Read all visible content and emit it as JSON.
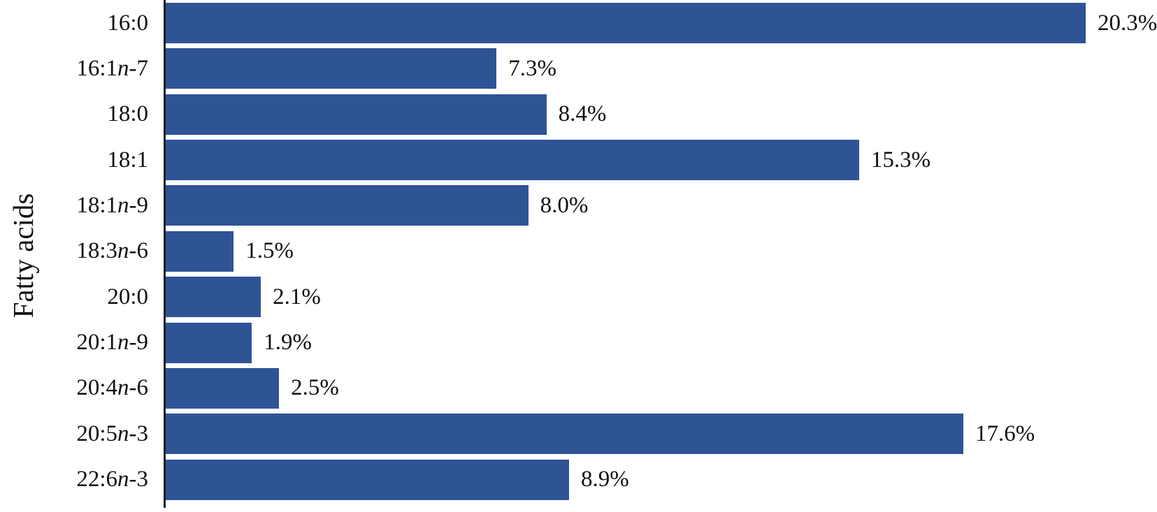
{
  "chart_data": {
    "type": "bar",
    "orientation": "horizontal",
    "title": "",
    "xlabel": "",
    "ylabel": "Fatty acids",
    "categories": [
      "16:0",
      "16:1n-7",
      "18:0",
      "18:1",
      "18:1n-9",
      "18:3n-6",
      "20:0",
      "20:1n-9",
      "20:4n-6",
      "20:5n-3",
      "22:6n-3"
    ],
    "values": [
      20.3,
      7.3,
      8.4,
      15.3,
      8.0,
      1.5,
      2.1,
      1.9,
      2.5,
      17.6,
      8.9
    ],
    "display_labels": [
      "20.3%",
      "7.3%",
      "8.4%",
      "15.3%",
      "8.0%",
      "1.5%",
      "2.1%",
      "1.9%",
      "2.5%",
      "17.6%",
      "8.9%"
    ],
    "category_parts": [
      {
        "pre": "16:0",
        "it": "",
        "post": ""
      },
      {
        "pre": "16:1",
        "it": "n",
        "post": "-7"
      },
      {
        "pre": "18:0",
        "it": "",
        "post": ""
      },
      {
        "pre": "18:1",
        "it": "",
        "post": ""
      },
      {
        "pre": "18:1",
        "it": "n",
        "post": "-9"
      },
      {
        "pre": "18:3",
        "it": "n",
        "post": "-6"
      },
      {
        "pre": "20:0",
        "it": "",
        "post": ""
      },
      {
        "pre": "20:1",
        "it": "n",
        "post": "-9"
      },
      {
        "pre": "20:4",
        "it": "n",
        "post": "-6"
      },
      {
        "pre": "20:5",
        "it": "n",
        "post": "-3"
      },
      {
        "pre": "22:6",
        "it": "n",
        "post": "-3"
      }
    ],
    "xlim": [
      0,
      21.9
    ],
    "grid": false,
    "legend": "none",
    "value_label_position": "right-of-bar-end",
    "bar_color": "#2F5496",
    "axis_color": "#1f1f1f",
    "text_color": "#111111",
    "background_color": "#ffffff"
  }
}
